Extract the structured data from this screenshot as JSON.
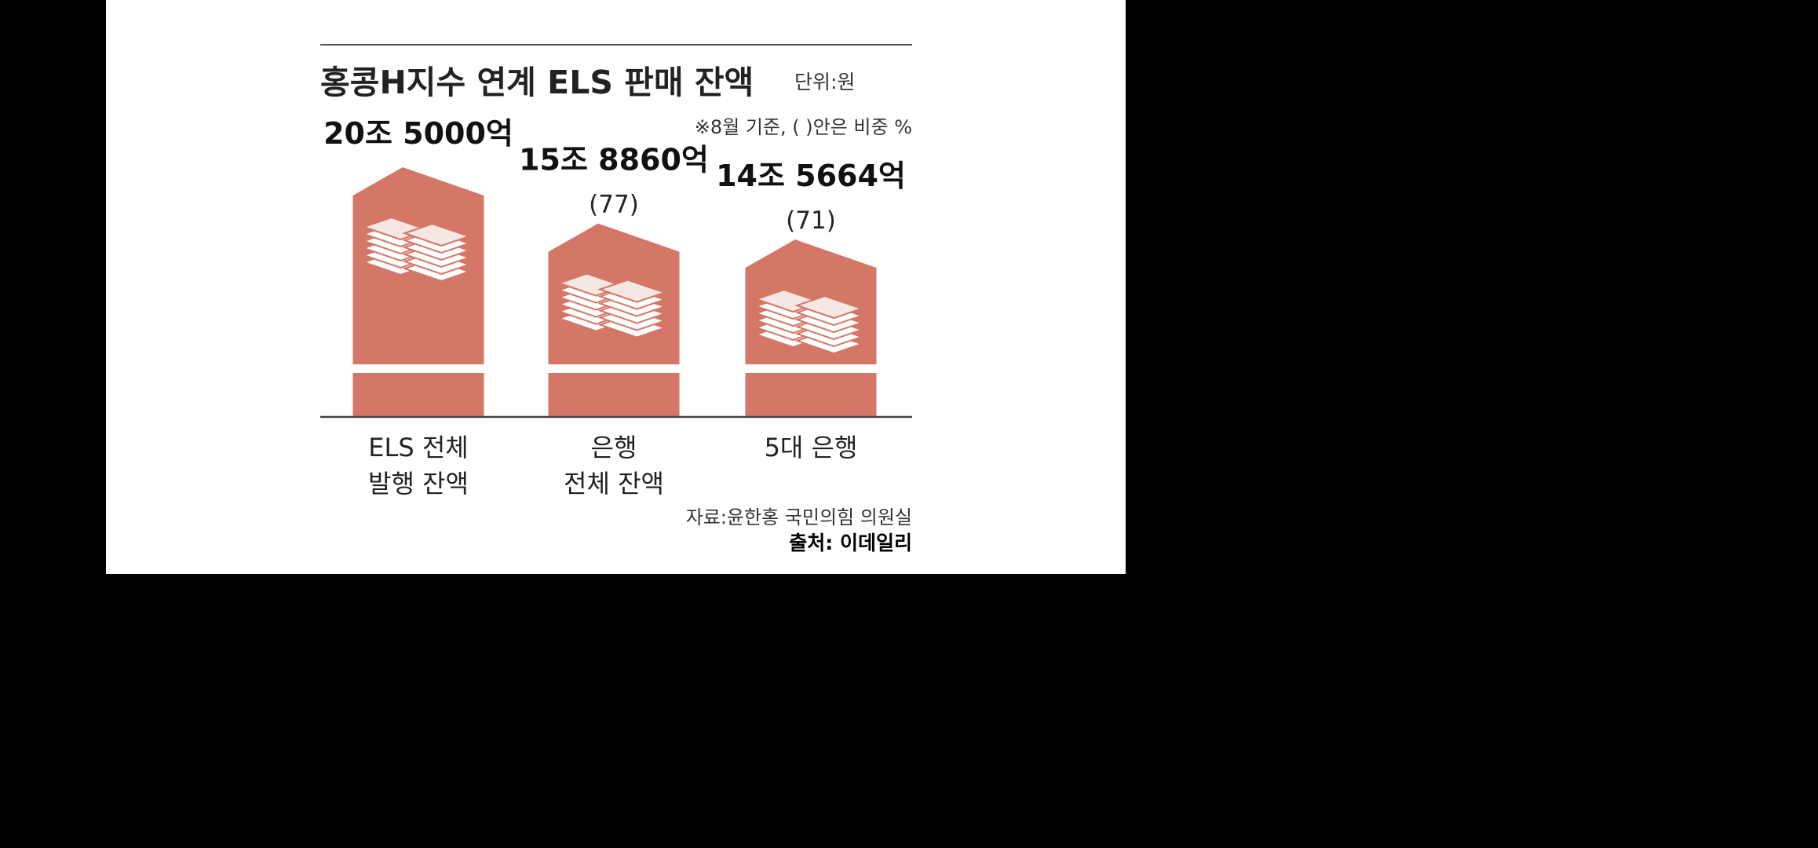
{
  "chart_data": {
    "type": "bar",
    "title": "홍콩H지수 연계 ELS 판매 잔액",
    "unit_label": "단위:원",
    "note": "※8월 기준, (   )안은 비중 %",
    "categories": [
      [
        "ELS 전체",
        "발행 잔액"
      ],
      [
        "은행",
        "전체 잔액"
      ],
      [
        "5대 은행"
      ]
    ],
    "values": [
      205000,
      158860,
      145664
    ],
    "value_labels": [
      "20조 5000억",
      "15조 8860억",
      "14조 5664억"
    ],
    "share_labels": [
      "",
      "(77)",
      "(71)"
    ],
    "value_unit": "억원",
    "ylim": [
      0,
      205000
    ],
    "grid": false,
    "legend": "none"
  },
  "colors": {
    "bar": "#d47766",
    "bar_dark": "#c45f4d",
    "paper": "#f5e7e2",
    "background": "#ffffff",
    "frame": "#000000"
  },
  "source": "자료:윤한홍 국민의힘 의원실",
  "credit": "출처: 이데일리"
}
